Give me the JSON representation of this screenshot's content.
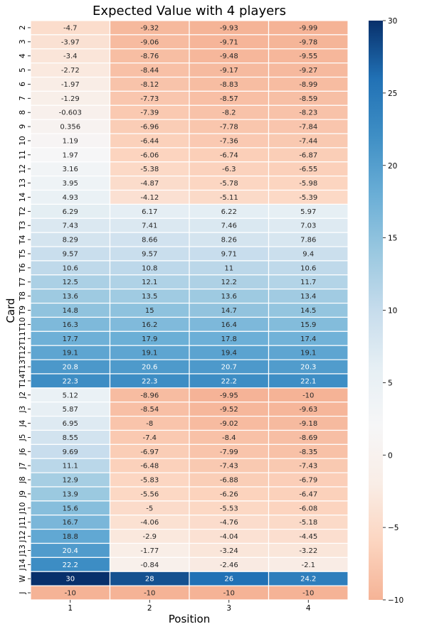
{
  "chart_data": {
    "type": "heatmap",
    "title": "Expected Value with 4 players",
    "xlabel": "Position",
    "ylabel": "Card",
    "x": [
      "1",
      "2",
      "3",
      "4"
    ],
    "y": [
      "2",
      "3",
      "4",
      "5",
      "6",
      "7",
      "8",
      "9",
      "10",
      "11",
      "12",
      "13",
      "14",
      "T2",
      "T3",
      "T4",
      "T5",
      "T6",
      "T7",
      "T8",
      "T9",
      "T10",
      "T11",
      "T12",
      "T13",
      "T14",
      "J2",
      "J3",
      "J4",
      "J5",
      "J6",
      "J7",
      "J8",
      "J9",
      "J10",
      "J11",
      "J12",
      "J13",
      "J14",
      "W",
      "J"
    ],
    "values": [
      [
        -4.7,
        -9.32,
        -9.93,
        -9.99
      ],
      [
        -3.97,
        -9.06,
        -9.71,
        -9.78
      ],
      [
        -3.4,
        -8.76,
        -9.48,
        -9.55
      ],
      [
        -2.72,
        -8.44,
        -9.17,
        -9.27
      ],
      [
        -1.97,
        -8.12,
        -8.83,
        -8.99
      ],
      [
        -1.29,
        -7.73,
        -8.57,
        -8.59
      ],
      [
        -0.603,
        -7.39,
        -8.2,
        -8.23
      ],
      [
        0.356,
        -6.96,
        -7.78,
        -7.84
      ],
      [
        1.19,
        -6.44,
        -7.36,
        -7.44
      ],
      [
        1.97,
        -6.06,
        -6.74,
        -6.87
      ],
      [
        3.16,
        -5.38,
        -6.3,
        -6.55
      ],
      [
        3.95,
        -4.87,
        -5.78,
        -5.98
      ],
      [
        4.93,
        -4.12,
        -5.11,
        -5.39
      ],
      [
        6.29,
        6.17,
        6.22,
        5.97
      ],
      [
        7.43,
        7.41,
        7.46,
        7.03
      ],
      [
        8.29,
        8.66,
        8.26,
        7.86
      ],
      [
        9.57,
        9.57,
        9.71,
        9.4
      ],
      [
        10.6,
        10.8,
        11,
        10.6
      ],
      [
        12.5,
        12.1,
        12.2,
        11.7
      ],
      [
        13.6,
        13.5,
        13.6,
        13.4
      ],
      [
        14.8,
        15,
        14.7,
        14.5
      ],
      [
        16.3,
        16.2,
        16.4,
        15.9
      ],
      [
        17.7,
        17.9,
        17.8,
        17.4
      ],
      [
        19.1,
        19.1,
        19.4,
        19.1
      ],
      [
        20.8,
        20.6,
        20.7,
        20.3
      ],
      [
        22.3,
        22.3,
        22.2,
        22.1
      ],
      [
        5.12,
        -8.96,
        -9.95,
        -10
      ],
      [
        5.87,
        -8.54,
        -9.52,
        -9.63
      ],
      [
        6.95,
        -8,
        -9.02,
        -9.18
      ],
      [
        8.55,
        -7.4,
        -8.4,
        -8.69
      ],
      [
        9.69,
        -6.97,
        -7.99,
        -8.35
      ],
      [
        11.1,
        -6.48,
        -7.43,
        -7.43
      ],
      [
        12.9,
        -5.83,
        -6.88,
        -6.79
      ],
      [
        13.9,
        -5.56,
        -6.26,
        -6.47
      ],
      [
        15.6,
        -5,
        -5.53,
        -6.08
      ],
      [
        16.7,
        -4.06,
        -4.76,
        -5.18
      ],
      [
        18.8,
        -2.9,
        -4.04,
        -4.45
      ],
      [
        20.4,
        -1.77,
        -3.24,
        -3.22
      ],
      [
        22.2,
        -0.84,
        -2.46,
        -2.1
      ],
      [
        30,
        28,
        26,
        24.2
      ],
      [
        -10,
        -10,
        -10,
        -10
      ]
    ],
    "colorbar": {
      "min": -10,
      "max": 30,
      "ticks": [
        30,
        25,
        20,
        15,
        10,
        5,
        0,
        -5,
        -10
      ],
      "colormap": "RdBu_r",
      "colors": [
        "#f5b396",
        "#fcd5c0",
        "#f9ede6",
        "#f6f6f7",
        "#e6eff4",
        "#c6dcec",
        "#9ac8e0",
        "#6aaed6",
        "#3f8fc5",
        "#2171b5",
        "#08306b"
      ]
    },
    "grid": true
  }
}
